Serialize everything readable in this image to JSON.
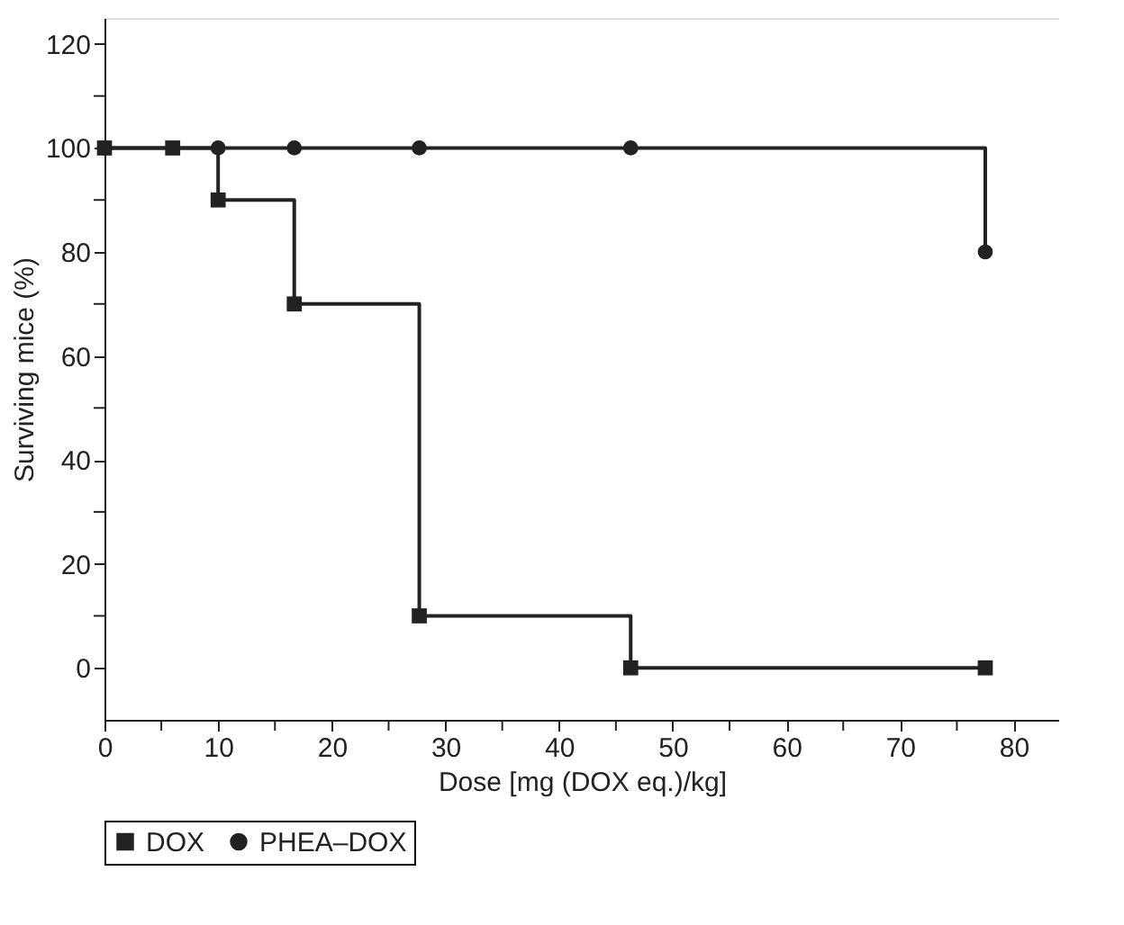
{
  "chart_data": {
    "type": "step",
    "xlabel": "Dose [mg (DOX eq.)/kg]",
    "ylabel": "Surviving mice (%)",
    "xlim": [
      0,
      84
    ],
    "ylim": [
      -10,
      125
    ],
    "xticks": [
      0,
      {
        "value": 5,
        "label": null
      },
      10,
      {
        "value": 15,
        "label": null
      },
      20,
      {
        "value": 25,
        "label": null
      },
      30,
      {
        "value": 35,
        "label": null
      },
      40,
      {
        "value": 45,
        "label": null
      },
      50,
      {
        "value": 55,
        "label": null
      },
      60,
      {
        "value": 65,
        "label": null
      },
      70,
      {
        "value": 75,
        "label": null
      },
      80
    ],
    "yticks": [
      0,
      {
        "value": 10,
        "label": null
      },
      20,
      {
        "value": 30,
        "label": null
      },
      40,
      {
        "value": 50,
        "label": null
      },
      60,
      {
        "value": 70,
        "label": null
      },
      80,
      {
        "value": 90,
        "label": null
      },
      100,
      {
        "value": 110,
        "label": null
      },
      120
    ],
    "legend": "bottom",
    "grid": false,
    "line_style": "solid",
    "series": [
      {
        "name": "DOX",
        "color": "#222222",
        "marker": "square",
        "x": [
          0,
          6,
          10,
          16.7,
          27.7,
          46.3,
          77.5
        ],
        "values": [
          100,
          100,
          90,
          70,
          10,
          0,
          0
        ]
      },
      {
        "name": "PHEA–DOX",
        "color": "#222222",
        "marker": "circle",
        "x": [
          0,
          10,
          16.7,
          27.7,
          46.3,
          77.5
        ],
        "values": [
          100,
          100,
          100,
          100,
          100,
          80
        ]
      }
    ]
  }
}
